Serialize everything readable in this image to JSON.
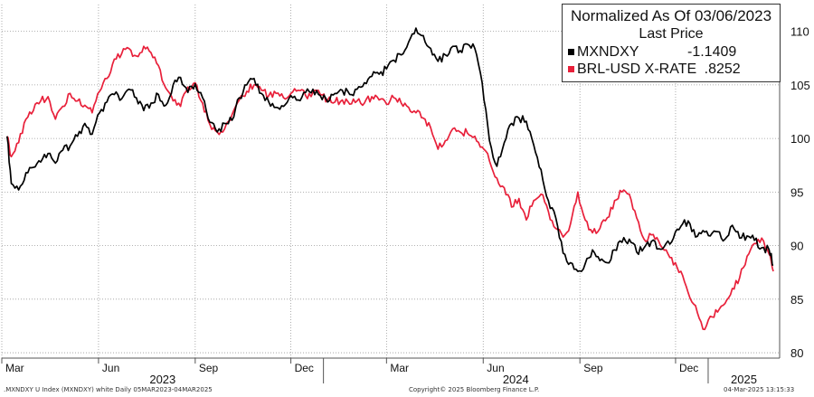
{
  "chart_data": {
    "type": "line",
    "title": "Normalized As Of 03/06/2023",
    "subtitle": "Last Price",
    "y_ticks": [
      80,
      85,
      90,
      95,
      100,
      105,
      110
    ],
    "ylim": [
      79.5,
      112.5
    ],
    "x_month_labels": [
      "Mar",
      "Jun",
      "Sep",
      "Dec",
      "Mar",
      "Jun",
      "Sep",
      "Dec"
    ],
    "x_year_labels": [
      "2023",
      "2024",
      "2025"
    ],
    "xlim": [
      "2023-03-01",
      "2025-03-10"
    ],
    "grid": true,
    "legend_position": "top-right",
    "series": [
      {
        "name": "MXNDXY",
        "last_label": "-1.1409",
        "color": "#000000",
        "points": [
          [
            "2023-03-06",
            100.2
          ],
          [
            "2023-03-10",
            95.8
          ],
          [
            "2023-03-17",
            95.2
          ],
          [
            "2023-03-24",
            96.8
          ],
          [
            "2023-03-31",
            97.3
          ],
          [
            "2023-04-07",
            97.8
          ],
          [
            "2023-04-14",
            98.6
          ],
          [
            "2023-04-21",
            97.7
          ],
          [
            "2023-04-28",
            98.9
          ],
          [
            "2023-05-05",
            99.3
          ],
          [
            "2023-05-12",
            100.2
          ],
          [
            "2023-05-19",
            101.4
          ],
          [
            "2023-05-26",
            100.4
          ],
          [
            "2023-06-02",
            102.4
          ],
          [
            "2023-06-09",
            103.4
          ],
          [
            "2023-06-16",
            104.1
          ],
          [
            "2023-06-23",
            103.7
          ],
          [
            "2023-06-30",
            104.6
          ],
          [
            "2023-07-07",
            103.8
          ],
          [
            "2023-07-14",
            102.6
          ],
          [
            "2023-07-21",
            103.3
          ],
          [
            "2023-07-28",
            104.1
          ],
          [
            "2023-08-04",
            103.1
          ],
          [
            "2023-08-11",
            105.0
          ],
          [
            "2023-08-18",
            105.7
          ],
          [
            "2023-08-25",
            104.3
          ],
          [
            "2023-09-01",
            105.1
          ],
          [
            "2023-09-08",
            103.8
          ],
          [
            "2023-09-15",
            101.5
          ],
          [
            "2023-09-22",
            100.6
          ],
          [
            "2023-09-29",
            101.4
          ],
          [
            "2023-10-06",
            101.7
          ],
          [
            "2023-10-13",
            103.8
          ],
          [
            "2023-10-20",
            105.0
          ],
          [
            "2023-10-27",
            105.6
          ],
          [
            "2023-11-03",
            104.2
          ],
          [
            "2023-11-10",
            103.4
          ],
          [
            "2023-11-17",
            102.9
          ],
          [
            "2023-11-24",
            103.0
          ],
          [
            "2023-12-01",
            104.0
          ],
          [
            "2023-12-08",
            103.6
          ],
          [
            "2023-12-15",
            104.3
          ],
          [
            "2023-12-22",
            104.6
          ],
          [
            "2023-12-29",
            104.0
          ],
          [
            "2024-01-05",
            103.4
          ],
          [
            "2024-01-12",
            104.2
          ],
          [
            "2024-01-19",
            104.5
          ],
          [
            "2024-01-26",
            104.1
          ],
          [
            "2024-02-02",
            104.6
          ],
          [
            "2024-02-09",
            105.2
          ],
          [
            "2024-02-16",
            105.8
          ],
          [
            "2024-02-23",
            106.0
          ],
          [
            "2024-03-01",
            106.5
          ],
          [
            "2024-03-08",
            107.3
          ],
          [
            "2024-03-15",
            107.8
          ],
          [
            "2024-03-22",
            109.0
          ],
          [
            "2024-03-29",
            110.3
          ],
          [
            "2024-04-05",
            109.6
          ],
          [
            "2024-04-12",
            108.4
          ],
          [
            "2024-04-19",
            107.2
          ],
          [
            "2024-04-26",
            107.8
          ],
          [
            "2024-05-03",
            108.6
          ],
          [
            "2024-05-10",
            108.2
          ],
          [
            "2024-05-17",
            108.8
          ],
          [
            "2024-05-24",
            108.4
          ],
          [
            "2024-05-31",
            105.2
          ],
          [
            "2024-06-07",
            99.8
          ],
          [
            "2024-06-14",
            97.4
          ],
          [
            "2024-06-21",
            99.6
          ],
          [
            "2024-06-28",
            101.4
          ],
          [
            "2024-07-05",
            101.9
          ],
          [
            "2024-07-12",
            101.6
          ],
          [
            "2024-07-19",
            99.4
          ],
          [
            "2024-07-26",
            97.1
          ],
          [
            "2024-08-02",
            94.2
          ],
          [
            "2024-08-09",
            92.6
          ],
          [
            "2024-08-16",
            89.3
          ],
          [
            "2024-08-23",
            88.4
          ],
          [
            "2024-08-30",
            87.6
          ],
          [
            "2024-09-06",
            88.3
          ],
          [
            "2024-09-13",
            89.6
          ],
          [
            "2024-09-20",
            88.6
          ],
          [
            "2024-09-27",
            88.4
          ],
          [
            "2024-10-04",
            89.6
          ],
          [
            "2024-10-11",
            90.3
          ],
          [
            "2024-10-18",
            90.6
          ],
          [
            "2024-10-25",
            89.4
          ],
          [
            "2024-11-01",
            89.8
          ],
          [
            "2024-11-08",
            90.4
          ],
          [
            "2024-11-15",
            89.7
          ],
          [
            "2024-11-22",
            90.2
          ],
          [
            "2024-11-29",
            90.7
          ],
          [
            "2024-12-06",
            91.8
          ],
          [
            "2024-12-13",
            92.3
          ],
          [
            "2024-12-20",
            90.8
          ],
          [
            "2024-12-27",
            91.4
          ],
          [
            "2025-01-03",
            90.9
          ],
          [
            "2025-01-10",
            91.3
          ],
          [
            "2025-01-17",
            90.6
          ],
          [
            "2025-01-24",
            91.9
          ],
          [
            "2025-01-31",
            90.7
          ],
          [
            "2025-02-07",
            90.9
          ],
          [
            "2025-02-14",
            90.5
          ],
          [
            "2025-02-21",
            89.8
          ],
          [
            "2025-02-28",
            89.6
          ],
          [
            "2025-03-04",
            88.2
          ]
        ]
      },
      {
        "name": "BRL-USD X-RATE",
        "last_label": ".8252",
        "color": "#e8203a",
        "points": [
          [
            "2023-03-06",
            100.2
          ],
          [
            "2023-03-10",
            98.3
          ],
          [
            "2023-03-17",
            99.6
          ],
          [
            "2023-03-24",
            101.8
          ],
          [
            "2023-03-31",
            102.6
          ],
          [
            "2023-04-07",
            103.5
          ],
          [
            "2023-04-14",
            103.9
          ],
          [
            "2023-04-21",
            101.8
          ],
          [
            "2023-04-28",
            103.0
          ],
          [
            "2023-05-05",
            104.2
          ],
          [
            "2023-05-12",
            103.5
          ],
          [
            "2023-05-19",
            103.1
          ],
          [
            "2023-05-26",
            102.4
          ],
          [
            "2023-06-02",
            104.4
          ],
          [
            "2023-06-09",
            105.6
          ],
          [
            "2023-06-16",
            107.4
          ],
          [
            "2023-06-23",
            107.9
          ],
          [
            "2023-06-30",
            108.4
          ],
          [
            "2023-07-07",
            107.7
          ],
          [
            "2023-07-14",
            108.6
          ],
          [
            "2023-07-21",
            108.0
          ],
          [
            "2023-07-28",
            106.8
          ],
          [
            "2023-08-04",
            104.7
          ],
          [
            "2023-08-11",
            103.5
          ],
          [
            "2023-08-18",
            103.0
          ],
          [
            "2023-08-25",
            104.8
          ],
          [
            "2023-09-01",
            105.2
          ],
          [
            "2023-09-08",
            103.3
          ],
          [
            "2023-09-15",
            101.3
          ],
          [
            "2023-09-22",
            100.6
          ],
          [
            "2023-09-29",
            100.9
          ],
          [
            "2023-10-06",
            102.2
          ],
          [
            "2023-10-13",
            103.6
          ],
          [
            "2023-10-20",
            104.4
          ],
          [
            "2023-10-27",
            105.0
          ],
          [
            "2023-11-03",
            104.5
          ],
          [
            "2023-11-10",
            104.0
          ],
          [
            "2023-11-17",
            104.2
          ],
          [
            "2023-11-24",
            103.8
          ],
          [
            "2023-12-01",
            104.2
          ],
          [
            "2023-12-08",
            104.5
          ],
          [
            "2023-12-15",
            104.0
          ],
          [
            "2023-12-22",
            104.3
          ],
          [
            "2023-12-29",
            104.1
          ],
          [
            "2024-01-05",
            103.6
          ],
          [
            "2024-01-12",
            103.4
          ],
          [
            "2024-01-19",
            103.6
          ],
          [
            "2024-01-26",
            103.2
          ],
          [
            "2024-02-02",
            103.5
          ],
          [
            "2024-02-09",
            103.3
          ],
          [
            "2024-02-16",
            103.9
          ],
          [
            "2024-02-23",
            103.6
          ],
          [
            "2024-03-01",
            103.2
          ],
          [
            "2024-03-08",
            103.8
          ],
          [
            "2024-03-15",
            103.3
          ],
          [
            "2024-03-22",
            102.9
          ],
          [
            "2024-03-29",
            102.4
          ],
          [
            "2024-04-05",
            101.9
          ],
          [
            "2024-04-12",
            101.0
          ],
          [
            "2024-04-19",
            99.0
          ],
          [
            "2024-04-26",
            99.8
          ],
          [
            "2024-05-03",
            100.9
          ],
          [
            "2024-05-10",
            100.6
          ],
          [
            "2024-05-17",
            100.5
          ],
          [
            "2024-05-24",
            100.2
          ],
          [
            "2024-05-31",
            99.2
          ],
          [
            "2024-06-07",
            97.9
          ],
          [
            "2024-06-14",
            96.3
          ],
          [
            "2024-06-21",
            95.4
          ],
          [
            "2024-06-28",
            93.6
          ],
          [
            "2024-07-05",
            94.4
          ],
          [
            "2024-07-12",
            92.4
          ],
          [
            "2024-07-19",
            94.2
          ],
          [
            "2024-07-26",
            94.8
          ],
          [
            "2024-08-02",
            93.2
          ],
          [
            "2024-08-09",
            91.6
          ],
          [
            "2024-08-16",
            90.8
          ],
          [
            "2024-08-23",
            92.0
          ],
          [
            "2024-08-30",
            95.0
          ],
          [
            "2024-09-06",
            92.4
          ],
          [
            "2024-09-13",
            91.2
          ],
          [
            "2024-09-20",
            91.6
          ],
          [
            "2024-09-27",
            92.6
          ],
          [
            "2024-10-04",
            94.2
          ],
          [
            "2024-10-11",
            95.0
          ],
          [
            "2024-10-18",
            94.8
          ],
          [
            "2024-10-25",
            92.6
          ],
          [
            "2024-11-01",
            90.6
          ],
          [
            "2024-11-08",
            91.0
          ],
          [
            "2024-11-15",
            90.4
          ],
          [
            "2024-11-22",
            89.6
          ],
          [
            "2024-11-29",
            88.2
          ],
          [
            "2024-12-06",
            87.6
          ],
          [
            "2024-12-13",
            85.6
          ],
          [
            "2024-12-20",
            84.4
          ],
          [
            "2024-12-27",
            82.2
          ],
          [
            "2025-01-03",
            83.4
          ],
          [
            "2025-01-10",
            83.8
          ],
          [
            "2025-01-17",
            84.6
          ],
          [
            "2025-01-24",
            86.0
          ],
          [
            "2025-01-31",
            87.0
          ],
          [
            "2025-02-07",
            89.0
          ],
          [
            "2025-02-14",
            90.2
          ],
          [
            "2025-02-21",
            90.7
          ],
          [
            "2025-02-28",
            89.2
          ],
          [
            "2025-03-04",
            87.6
          ]
        ]
      }
    ]
  },
  "footer": {
    "left": ".MXNDXY U Index (MXNDXY) white  Daily 05MAR2023-04MAR2025",
    "center": "Copyright© 2025 Bloomberg Finance L.P.",
    "right": "04-Mar-2025 13:15:33"
  }
}
